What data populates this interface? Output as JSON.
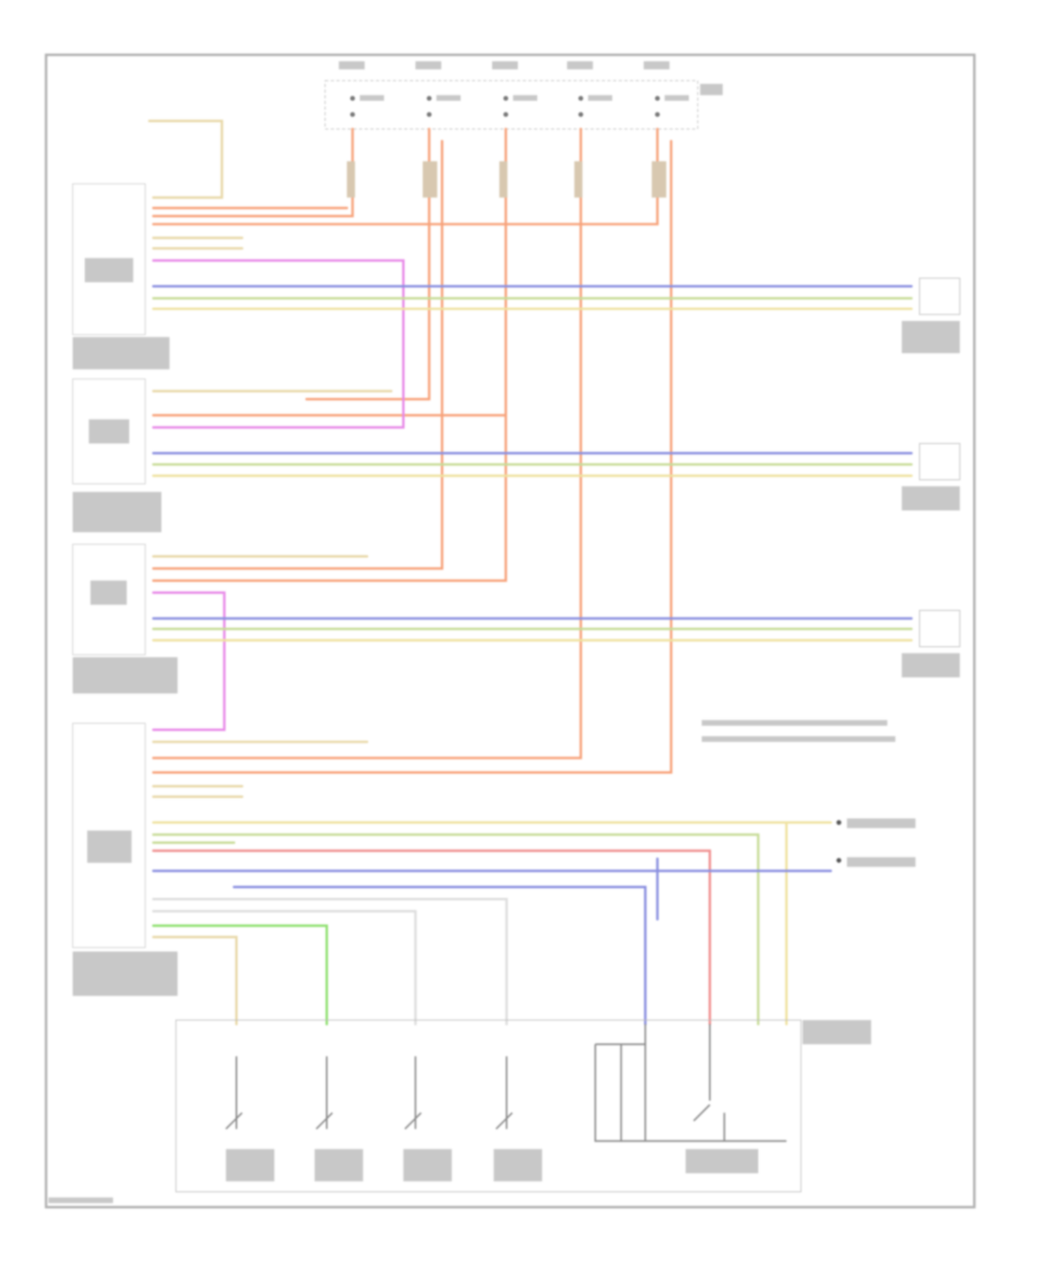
{
  "diagram": {
    "type": "wiring-diagram",
    "wire_colors": {
      "power": "#f7a27a",
      "signal_blue": "#8a8fe0",
      "signal_green": "#c8dc98",
      "signal_yellow": "#efe2a0",
      "ground": "#e8d8a8",
      "pink": "#e88ae8",
      "red": "#f09090",
      "bright_green": "#8fe070"
    },
    "frame_color": "#a8a8a8",
    "text_legibility": "illegible"
  }
}
